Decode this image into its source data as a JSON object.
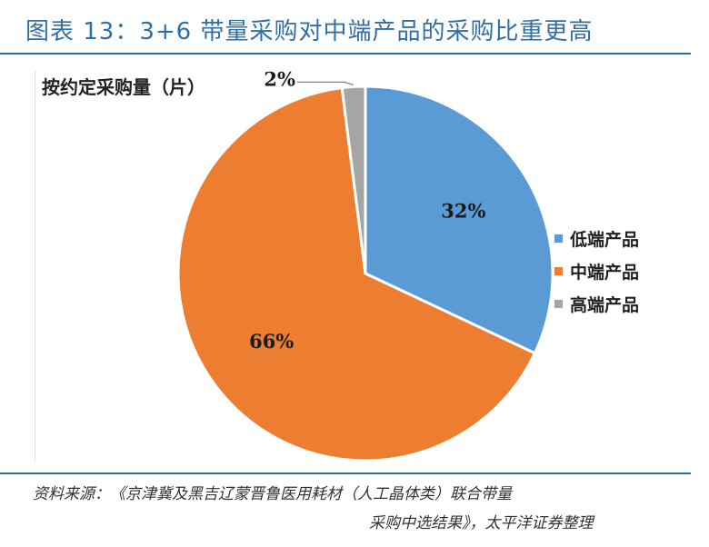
{
  "header": {
    "title": "图表 13：3+6 带量采购对中端产品的采购比重更高"
  },
  "chart_data": {
    "type": "pie",
    "title": "按约定采购量（片）",
    "slices": [
      {
        "name": "低端产品",
        "value": 32,
        "label": "32%",
        "color": "#5b9bd5"
      },
      {
        "name": "中端产品",
        "value": 66,
        "label": "66%",
        "color": "#ed7d31"
      },
      {
        "name": "高端产品",
        "value": 2,
        "label": "2%",
        "color": "#a5a5a5"
      }
    ],
    "legend_position": "right"
  },
  "footer": {
    "source_line1": "资料来源：《京津冀及黑吉辽蒙晋鲁医用耗材（人工晶体类）联合带量",
    "source_line2": "采购中选结果》，太平洋证券整理"
  }
}
